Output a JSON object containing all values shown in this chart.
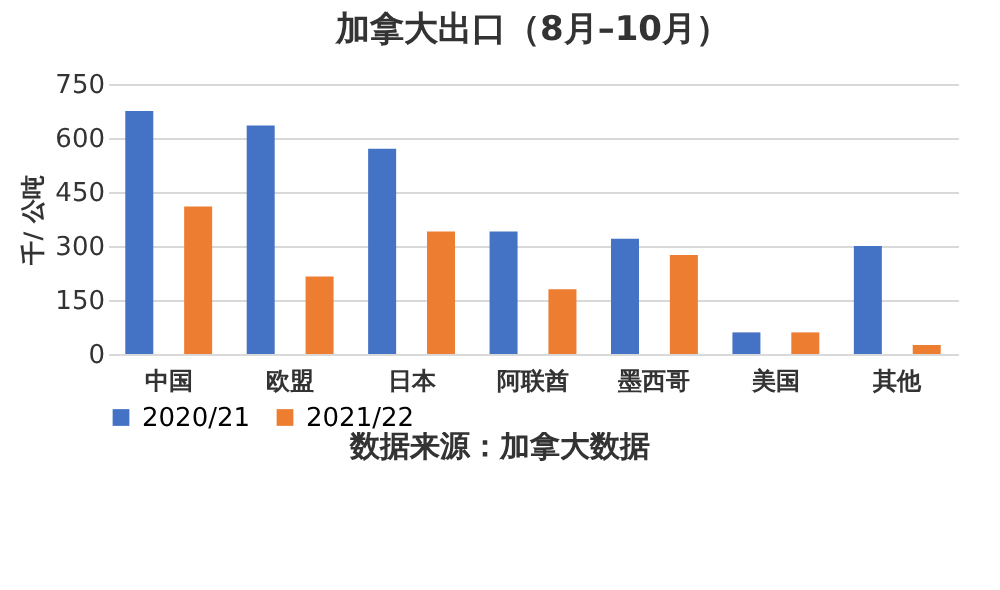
{
  "chart_data": {
    "type": "bar",
    "title": "加拿大出口（8月–10月）",
    "ylabel": "千/ 公吨",
    "categories": [
      "中国",
      "欧盟",
      "日本",
      "阿联酋",
      "墨西哥",
      "美国",
      "其他"
    ],
    "series": [
      {
        "name": "2020/21",
        "color": "#4472c4",
        "values": [
          675,
          635,
          570,
          340,
          320,
          60,
          300
        ]
      },
      {
        "name": "2021/22",
        "color": "#ed7d31",
        "values": [
          410,
          215,
          340,
          180,
          275,
          60,
          25
        ]
      }
    ],
    "ylim": [
      0,
      750
    ],
    "yticks": [
      0,
      150,
      300,
      450,
      600,
      750
    ],
    "grid": "y",
    "legend": "bottom",
    "annotations": [
      "数据来源：加拿大数据"
    ]
  }
}
